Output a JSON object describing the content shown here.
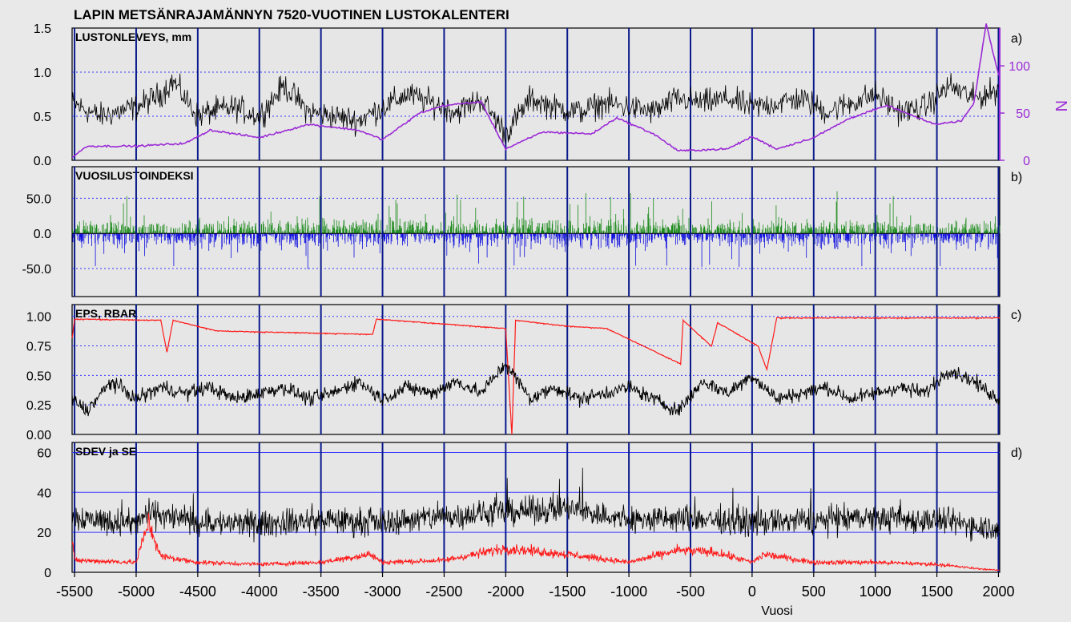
{
  "figure": {
    "title": "LAPIN METSÄNRAJAMÄNNYN 7520-VUOTINEN LUSTOKALENTERI",
    "xlabel": "Vuosi"
  },
  "colors": {
    "background": "#e6e6e6",
    "grid_vertical": "#0a1a8c",
    "grid_dotted": "#3a3aff",
    "black_series": "#000000",
    "purple_series": "#9b2bd6",
    "green_series": "#1a8a1a",
    "blue_series": "#1010e0",
    "red_series": "#ff1a1a"
  },
  "chart_data": [
    {
      "id": "a",
      "type": "line",
      "panel_label": "a)",
      "title": "LUSTONLEVEYS, mm",
      "xlim": [
        -5520,
        2010
      ],
      "ylim": [
        0,
        1.5
      ],
      "yticks": [
        "0.0",
        "0.5",
        "1.0",
        "1.5"
      ],
      "ytick_values": [
        0,
        0.5,
        1.0,
        1.5
      ],
      "y2label": "N",
      "y2lim": [
        0,
        140
      ],
      "y2ticks": [
        "0",
        "50",
        "100"
      ],
      "y2tick_values": [
        0,
        50,
        100
      ],
      "series": [
        {
          "color": "#000000",
          "axis": "left",
          "x": [
            -5520,
            -5300,
            -5000,
            -4800,
            -4700,
            -4500,
            -4400,
            -4200,
            -4000,
            -3800,
            -3600,
            -3400,
            -3200,
            -3000,
            -2800,
            -2600,
            -2400,
            -2200,
            -2000,
            -1800,
            -1600,
            -1400,
            -1200,
            -1000,
            -800,
            -600,
            -400,
            -200,
            0,
            200,
            400,
            600,
            800,
            1000,
            1200,
            1400,
            1600,
            1800,
            2000
          ],
          "values": [
            0.65,
            0.5,
            0.6,
            0.75,
            0.9,
            0.5,
            0.55,
            0.6,
            0.5,
            0.85,
            0.55,
            0.5,
            0.45,
            0.6,
            0.75,
            0.65,
            0.55,
            0.7,
            0.3,
            0.7,
            0.6,
            0.55,
            0.65,
            0.6,
            0.55,
            0.7,
            0.65,
            0.7,
            0.6,
            0.65,
            0.7,
            0.55,
            0.65,
            0.75,
            0.55,
            0.6,
            0.85,
            0.7,
            0.8
          ]
        },
        {
          "color": "#9b2bd6",
          "axis": "right",
          "x": [
            -5520,
            -5400,
            -5000,
            -4600,
            -4400,
            -4000,
            -3600,
            -3200,
            -3000,
            -2700,
            -2500,
            -2200,
            -2000,
            -1700,
            -1300,
            -1100,
            -800,
            -600,
            -200,
            0,
            200,
            500,
            800,
            1100,
            1400,
            1500,
            1700,
            1800,
            1900,
            2000
          ],
          "values": [
            3,
            15,
            15,
            18,
            32,
            24,
            38,
            32,
            22,
            50,
            58,
            62,
            12,
            30,
            28,
            45,
            28,
            10,
            12,
            25,
            12,
            24,
            45,
            58,
            42,
            38,
            42,
            60,
            145,
            90
          ]
        }
      ]
    },
    {
      "id": "b",
      "type": "bar",
      "panel_label": "b)",
      "title": "VUOSILUSTOINDEKSI",
      "xlim": [
        -5520,
        2010
      ],
      "ylim": [
        -90,
        95
      ],
      "yticks": [
        "-50.0",
        "0.0",
        "50.0"
      ],
      "ytick_values": [
        -50,
        0,
        50
      ],
      "series": [
        {
          "color": "#1a8a1a",
          "sign": "positive",
          "typical_range": [
            0,
            40
          ],
          "max_approx": 85
        },
        {
          "color": "#1010e0",
          "sign": "negative",
          "typical_range": [
            -40,
            0
          ],
          "min_approx": -80
        }
      ]
    },
    {
      "id": "c",
      "type": "line",
      "panel_label": "c)",
      "title": "EPS, RBAR",
      "xlim": [
        -5520,
        2010
      ],
      "ylim": [
        0,
        1.1
      ],
      "yticks": [
        "0.00",
        "0.25",
        "0.50",
        "0.75",
        "1.00"
      ],
      "ytick_values": [
        0,
        0.25,
        0.5,
        0.75,
        1.0
      ],
      "series": [
        {
          "color": "#ff1a1a",
          "x": [
            -5520,
            -5500,
            -4800,
            -4750,
            -4700,
            -4350,
            -3080,
            -3050,
            -2000,
            -1950,
            -1920,
            -1500,
            -1180,
            -580,
            -560,
            -330,
            -280,
            50,
            120,
            200,
            2000
          ],
          "values": [
            0.82,
            0.98,
            0.97,
            0.7,
            0.97,
            0.88,
            0.85,
            0.98,
            0.9,
            0.0,
            0.97,
            0.92,
            0.9,
            0.6,
            0.97,
            0.75,
            0.95,
            0.75,
            0.55,
            0.99,
            0.99
          ]
        },
        {
          "color": "#000000",
          "x": [
            -5520,
            -5400,
            -5200,
            -5000,
            -4800,
            -4600,
            -4400,
            -4200,
            -4000,
            -3800,
            -3600,
            -3400,
            -3200,
            -3000,
            -2800,
            -2600,
            -2400,
            -2200,
            -2000,
            -1800,
            -1600,
            -1400,
            -1200,
            -1000,
            -800,
            -600,
            -400,
            -200,
            0,
            200,
            400,
            600,
            800,
            1000,
            1200,
            1400,
            1600,
            1800,
            2000
          ],
          "values": [
            0.3,
            0.2,
            0.45,
            0.3,
            0.4,
            0.35,
            0.4,
            0.3,
            0.35,
            0.4,
            0.3,
            0.35,
            0.45,
            0.3,
            0.4,
            0.35,
            0.45,
            0.35,
            0.6,
            0.3,
            0.4,
            0.3,
            0.35,
            0.4,
            0.3,
            0.2,
            0.45,
            0.35,
            0.5,
            0.3,
            0.35,
            0.4,
            0.3,
            0.35,
            0.4,
            0.35,
            0.55,
            0.45,
            0.3
          ]
        }
      ]
    },
    {
      "id": "d",
      "type": "line",
      "panel_label": "d)",
      "title": "SDEV ja SE",
      "xlim": [
        -5520,
        2010
      ],
      "ylim": [
        0,
        65
      ],
      "yticks": [
        "0",
        "20",
        "40",
        "60"
      ],
      "ytick_values": [
        0,
        20,
        40,
        60
      ],
      "xticks": [
        "-5500",
        "-5000",
        "-4500",
        "-4000",
        "-3500",
        "-3000",
        "-2500",
        "-2000",
        "-1500",
        "-1000",
        "-500",
        "0",
        "500",
        "1000",
        "1500",
        "2000"
      ],
      "xtick_values": [
        -5500,
        -5000,
        -4500,
        -4000,
        -3500,
        -3000,
        -2500,
        -2000,
        -1500,
        -1000,
        -500,
        0,
        500,
        1000,
        1500,
        2000
      ],
      "series": [
        {
          "color": "#000000",
          "x": [
            -5520,
            -5000,
            -4900,
            -4500,
            -4000,
            -3500,
            -3000,
            -2500,
            -2000,
            -1500,
            -1000,
            -500,
            0,
            500,
            1000,
            1500,
            2000
          ],
          "values": [
            28,
            24,
            30,
            25,
            24,
            26,
            25,
            28,
            30,
            32,
            26,
            27,
            25,
            26,
            27,
            26,
            22
          ]
        },
        {
          "color": "#ff1a1a",
          "x": [
            -5520,
            -5500,
            -5000,
            -4900,
            -4800,
            -4500,
            -4000,
            -3500,
            -3100,
            -3000,
            -2500,
            -2000,
            -1500,
            -1000,
            -600,
            -300,
            0,
            100,
            500,
            1000,
            1500,
            1800,
            2000
          ],
          "values": [
            16,
            6,
            5,
            25,
            8,
            5,
            4,
            5,
            9,
            5,
            6,
            12,
            9,
            5,
            11,
            10,
            5,
            9,
            5,
            5,
            4,
            2,
            1
          ]
        }
      ]
    }
  ]
}
